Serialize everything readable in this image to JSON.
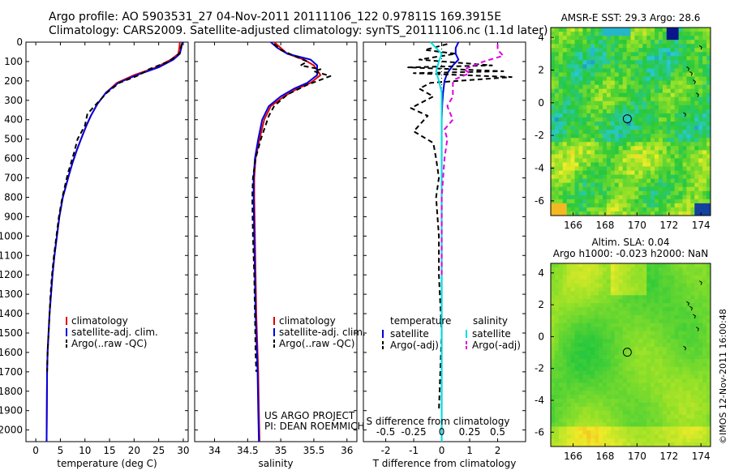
{
  "header": {
    "line1": "Argo profile: AO 5903531_27 04-Nov-2011 20111106_122 0.97811S 169.3915E",
    "line2": "Climatology: CARS2009. Satellite-adjusted climatology: synTS_20111106.nc (1.1d later)"
  },
  "colors": {
    "climatology": "#e00000",
    "satellite": "#0000e0",
    "argo": "#000000",
    "sal_satellite": "#00e0e0",
    "sal_argo": "#e000e0"
  },
  "depth_ticks": [
    "0",
    "100",
    "200",
    "300",
    "400",
    "500",
    "600",
    "700",
    "800",
    "900",
    "1000",
    "1100",
    "1200",
    "1300",
    "1400",
    "1500",
    "1600",
    "1700",
    "1800",
    "1900",
    "2000"
  ],
  "chart_data": [
    {
      "type": "line",
      "name": "temperature",
      "xlabel": "temperature (deg C)",
      "xlim": [
        -2,
        31
      ],
      "ylim": [
        2060,
        0
      ],
      "xticks": [
        "0",
        "5",
        "10",
        "15",
        "20",
        "25",
        "30"
      ],
      "legend": [
        "climatology",
        "satellite-adj. clim.",
        "Argo(..raw -QC)"
      ],
      "series": [
        {
          "name": "climatology",
          "x": [
            29.3,
            29.2,
            29.0,
            27.5,
            24.5,
            20.0,
            16.5,
            14.3,
            12.5,
            11.2,
            10.3,
            9.2,
            8.3,
            7.5,
            6.8,
            5.5,
            4.8,
            4.3,
            3.8,
            3.4,
            3.1,
            2.8,
            2.6,
            2.4,
            2.3,
            2.2
          ],
          "y": [
            0,
            30,
            60,
            90,
            130,
            170,
            210,
            260,
            320,
            380,
            430,
            500,
            560,
            620,
            680,
            800,
            900,
            1000,
            1100,
            1200,
            1300,
            1400,
            1500,
            1600,
            1700,
            2060
          ]
        },
        {
          "name": "satellite-adj. clim.",
          "x": [
            29.8,
            29.6,
            29.3,
            28.0,
            25.0,
            20.5,
            16.8,
            14.3,
            12.5,
            11.2,
            10.3,
            9.2,
            8.3,
            7.5,
            6.8,
            5.5,
            4.8,
            4.3,
            3.8,
            3.4,
            3.1,
            2.8,
            2.6,
            2.4,
            2.3,
            2.2
          ],
          "y": [
            0,
            30,
            60,
            90,
            130,
            170,
            210,
            260,
            320,
            380,
            430,
            500,
            560,
            620,
            680,
            800,
            900,
            1000,
            1100,
            1200,
            1300,
            1400,
            1500,
            1600,
            1700,
            2060
          ]
        },
        {
          "name": "Argo(..raw -QC)",
          "x": [
            29.7,
            29.5,
            29.2,
            27.0,
            23.0,
            21.0,
            17.0,
            14.5,
            12.3,
            10.5,
            10.0,
            8.5,
            7.9,
            7.2,
            6.5,
            5.4,
            4.7,
            4.2,
            3.7,
            3.3,
            3.0,
            2.8,
            2.6,
            2.4,
            2.3
          ],
          "y": [
            10,
            30,
            60,
            100,
            140,
            170,
            210,
            260,
            320,
            370,
            430,
            500,
            560,
            620,
            680,
            800,
            900,
            1000,
            1100,
            1200,
            1300,
            1400,
            1500,
            1600,
            1700
          ]
        }
      ]
    },
    {
      "type": "line",
      "name": "salinity",
      "xlabel": "salinity",
      "xlim": [
        33.7,
        36.15
      ],
      "ylim": [
        2060,
        0
      ],
      "xticks": [
        "34",
        "34.5",
        "35",
        "35.5",
        "36"
      ],
      "legend": [
        "climatology",
        "satellite-adj. clim.",
        "Argo(..raw -QC)"
      ],
      "annotation": [
        "US ARGO PROJECT",
        "PI: DEAN ROEMMICH"
      ],
      "series": [
        {
          "name": "climatology",
          "x": [
            34.9,
            35.0,
            35.1,
            35.35,
            35.5,
            35.6,
            35.45,
            35.25,
            35.05,
            34.85,
            34.75,
            34.68,
            34.62,
            34.6,
            34.6,
            34.61,
            34.62,
            34.63,
            34.64,
            34.65,
            34.66,
            34.67,
            34.68
          ],
          "y": [
            0,
            30,
            60,
            90,
            120,
            170,
            210,
            240,
            280,
            330,
            400,
            500,
            600,
            700,
            800,
            1000,
            1200,
            1400,
            1500,
            1600,
            1700,
            1900,
            2060
          ]
        },
        {
          "name": "satellite-adj. clim.",
          "x": [
            34.85,
            34.95,
            35.1,
            35.45,
            35.55,
            35.55,
            35.4,
            35.2,
            35.0,
            34.82,
            34.72,
            34.66,
            34.61,
            34.59,
            34.59,
            34.6,
            34.61,
            34.62,
            34.63,
            34.64,
            34.65,
            34.66,
            34.67
          ],
          "y": [
            0,
            30,
            60,
            90,
            120,
            170,
            210,
            240,
            280,
            330,
            400,
            500,
            600,
            700,
            800,
            1000,
            1200,
            1400,
            1500,
            1600,
            1700,
            1900,
            2060
          ]
        },
        {
          "name": "Argo(..raw -QC)",
          "x": [
            34.9,
            35.0,
            35.2,
            35.4,
            35.3,
            35.6,
            35.5,
            35.75,
            35.4,
            35.1,
            34.9,
            34.82,
            34.7,
            34.62,
            34.58,
            34.57,
            34.58,
            34.6,
            34.61,
            34.62,
            34.63
          ],
          "y": [
            10,
            40,
            70,
            100,
            120,
            140,
            150,
            175,
            220,
            270,
            330,
            380,
            500,
            600,
            700,
            800,
            1000,
            1200,
            1400,
            1600,
            1700
          ]
        }
      ]
    },
    {
      "type": "line",
      "name": "difference from climatology",
      "xlabel": "T difference from climatology",
      "xlabel_top": "S difference from climatology",
      "xlim": [
        -2.8,
        3.0
      ],
      "ylim": [
        2060,
        0
      ],
      "xticks": [
        "-2",
        "-1",
        "0",
        "1",
        "2"
      ],
      "xticks_top": [
        "-0.5",
        "-0.25",
        "0",
        "0.25",
        "0.5"
      ],
      "legend_temperature": {
        "heading": "temperature",
        "items": [
          "satellite",
          "Argo(-adj)"
        ]
      },
      "legend_salinity": {
        "heading": "salinity",
        "items": [
          "satellite",
          "Argo(-adj)"
        ]
      },
      "series": [
        {
          "name": "temperature satellite",
          "x": [
            0.6,
            0.5,
            0.5,
            0.6,
            0.4,
            0.2,
            0.1,
            0.05,
            0.02,
            0.0,
            0.0,
            0.0,
            0.0
          ],
          "y": [
            0,
            30,
            60,
            90,
            120,
            160,
            200,
            260,
            320,
            400,
            600,
            1200,
            2060
          ]
        },
        {
          "name": "temperature Argo(-adj)",
          "x": [
            0.2,
            -0.6,
            0.5,
            -0.8,
            1.8,
            -1.2,
            2.2,
            -1.0,
            2.5,
            -0.4,
            -0.8,
            -0.3,
            -1.1,
            -0.5,
            -1.0,
            -0.3,
            -0.2,
            -0.1,
            -0.2,
            -0.1,
            -0.1,
            0.0,
            -0.1
          ],
          "y": [
            10,
            40,
            60,
            90,
            120,
            130,
            150,
            160,
            180,
            210,
            240,
            280,
            340,
            380,
            460,
            520,
            600,
            700,
            800,
            1000,
            1200,
            1500,
            1900
          ]
        },
        {
          "name": "salinity satellite",
          "x": [
            -0.4,
            -0.2,
            0.0,
            -0.1,
            -0.2,
            -0.1,
            0.0,
            0.0,
            0.0,
            0.0
          ],
          "y": [
            0,
            30,
            60,
            100,
            150,
            200,
            260,
            400,
            1000,
            2060
          ]
        },
        {
          "name": "salinity Argo(-adj)",
          "x": [
            2.0,
            2.0,
            2.2,
            1.5,
            0.8,
            1.0,
            0.5,
            0.4,
            0.4,
            0.2,
            0.4,
            0.1,
            0.2,
            0.1,
            0.0,
            0.0
          ],
          "y": [
            10,
            40,
            70,
            100,
            140,
            160,
            190,
            210,
            280,
            330,
            400,
            450,
            500,
            600,
            800,
            1200
          ]
        }
      ]
    },
    {
      "type": "heatmap",
      "name": "sst map",
      "title": "AMSR-E SST: 29.3 Argo: 28.6",
      "xlim": [
        164.6,
        174.6
      ],
      "ylim": [
        -6.9,
        4.6
      ],
      "xticks": [
        "166",
        "168",
        "170",
        "172",
        "174"
      ],
      "yticks": [
        "4",
        "2",
        "0",
        "-2",
        "-4",
        "-6"
      ],
      "argo_position": {
        "lon": 169.39,
        "lat": -0.98
      }
    },
    {
      "type": "heatmap",
      "name": "sla map",
      "title": [
        "Altim. SLA: 0.04",
        "Argo h1000: -0.023 h2000: NaN"
      ],
      "xlim": [
        164.6,
        174.6
      ],
      "ylim": [
        -6.9,
        4.6
      ],
      "xticks": [
        "166",
        "168",
        "170",
        "172",
        "174"
      ],
      "yticks": [
        "4",
        "2",
        "0",
        "-2",
        "-4",
        "-6"
      ],
      "argo_position": {
        "lon": 169.39,
        "lat": -0.98
      }
    }
  ],
  "credit": "©IMOS 12-Nov-2011 16:00:48"
}
